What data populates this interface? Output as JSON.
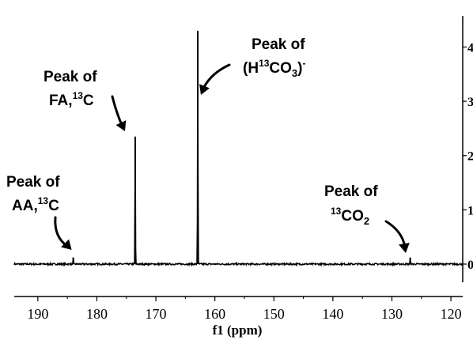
{
  "chart_data": {
    "type": "line",
    "title": "",
    "xlabel": "f1 (ppm)",
    "ylabel": "",
    "x_axis": {
      "reversed": true,
      "range": [
        194,
        118
      ],
      "ticks": [
        190,
        180,
        170,
        160,
        150,
        140,
        130,
        120
      ]
    },
    "y_axis": {
      "position": "right",
      "range": [
        -0.5,
        4.4
      ],
      "ticks": [
        0,
        1,
        2,
        3,
        4
      ],
      "ticks_partially_visible": true
    },
    "grid": false,
    "legend": "none",
    "series": [
      {
        "style": "spectrum",
        "baseline": 0,
        "peaks": [
          {
            "x": 184.0,
            "y": 0.12
          },
          {
            "x": 173.5,
            "y": 2.35
          },
          {
            "x": 162.9,
            "y": 4.3
          },
          {
            "x": 126.9,
            "y": 0.12
          }
        ]
      }
    ],
    "annotations": [
      {
        "lines": [
          "Peak of",
          "AA,",
          "13",
          "C"
        ],
        "target_x": 184.0
      },
      {
        "lines": [
          "Peak of",
          "FA,",
          "13",
          "C"
        ],
        "target_x": 173.5
      },
      {
        "lines": [
          "Peak of",
          "(H",
          "13",
          "CO",
          "3",
          ")",
          "-"
        ],
        "target_x": 162.9
      },
      {
        "lines": [
          "Peak of",
          "13",
          "CO",
          "2"
        ],
        "target_x": 126.9
      }
    ]
  }
}
